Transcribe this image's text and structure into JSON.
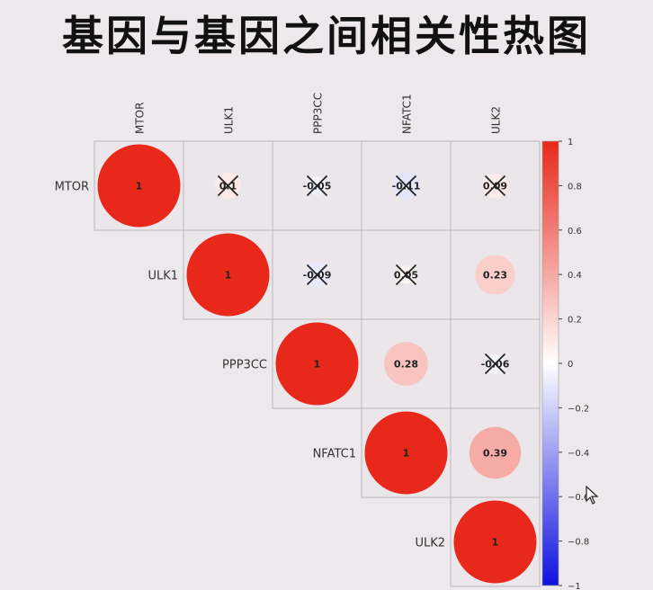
{
  "title": "基因与基因之间相关性热图",
  "chart_data": {
    "type": "heatmap",
    "title": "基因与基因之间相关性热图",
    "genes": [
      "MTOR",
      "ULK1",
      "PPP3CC",
      "NFATC1",
      "ULK2"
    ],
    "matrix_upper": [
      [
        1,
        0.1,
        -0.05,
        -0.11,
        0.09
      ],
      [
        null,
        1,
        -0.09,
        0.05,
        0.23
      ],
      [
        null,
        null,
        1,
        0.28,
        -0.06
      ],
      [
        null,
        null,
        null,
        1,
        0.39
      ],
      [
        null,
        null,
        null,
        null,
        1
      ]
    ],
    "cell_labels": [
      [
        "1",
        "0.1",
        "-0.05",
        "-0.11",
        "0.09"
      ],
      [
        null,
        "1",
        "-0.09",
        "0.05",
        "0.23"
      ],
      [
        null,
        null,
        "1",
        "0.28",
        "-0.06"
      ],
      [
        null,
        null,
        null,
        "1",
        "0.39"
      ],
      [
        null,
        null,
        null,
        null,
        "1"
      ]
    ],
    "crossed_out": [
      [
        false,
        true,
        true,
        true,
        true
      ],
      [
        null,
        false,
        true,
        true,
        false
      ],
      [
        null,
        null,
        false,
        false,
        true
      ],
      [
        null,
        null,
        null,
        false,
        false
      ],
      [
        null,
        null,
        null,
        null,
        false
      ]
    ],
    "colorbar": {
      "range": [
        -1,
        1
      ],
      "ticks": [
        1,
        0.8,
        0.6,
        0.4,
        0.2,
        0,
        -0.2,
        -0.4,
        -0.6,
        -0.8,
        -1
      ],
      "tick_labels": [
        "1",
        "0.8",
        "0.6",
        "0.4",
        "0.2",
        "0",
        "−0.2",
        "−0.4",
        "−0.6",
        "−0.8",
        "−1"
      ],
      "colors": {
        "positive": "#e8281a",
        "neutral": "#ffffff",
        "negative": "#1010e0"
      }
    }
  }
}
